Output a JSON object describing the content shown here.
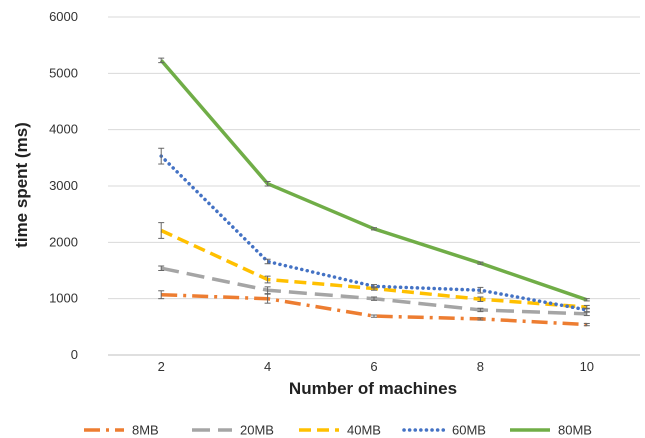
{
  "chart_data": {
    "type": "line",
    "title": "",
    "xlabel": "Number of machines",
    "ylabel": "time spent  (ms)",
    "x": [
      2,
      4,
      6,
      8,
      10
    ],
    "x_tick_labels": [
      "2",
      "4",
      "6",
      "8",
      "10"
    ],
    "ylim": [
      0,
      6000
    ],
    "y_ticks": [
      0,
      1000,
      2000,
      3000,
      4000,
      5000,
      6000
    ],
    "y_tick_labels": [
      "0",
      "1000",
      "2000",
      "3000",
      "4000",
      "5000",
      "6000"
    ],
    "grid": "horizontal",
    "legend_position": "bottom",
    "series": [
      {
        "name": "8MB",
        "color": "#ED7D31",
        "dash": "dash-dot",
        "values": [
          1070,
          1000,
          690,
          640,
          540
        ],
        "error": [
          70,
          80,
          20,
          20,
          20
        ]
      },
      {
        "name": "20MB",
        "color": "#A5A5A5",
        "dash": "long-dash",
        "values": [
          1540,
          1150,
          1000,
          800,
          730
        ],
        "error": [
          40,
          60,
          30,
          30,
          30
        ]
      },
      {
        "name": "40MB",
        "color": "#FFC000",
        "dash": "dash",
        "values": [
          2210,
          1340,
          1180,
          990,
          850
        ],
        "error": [
          140,
          60,
          30,
          40,
          30
        ]
      },
      {
        "name": "60MB",
        "color": "#4472C4",
        "dash": "dot",
        "values": [
          3530,
          1660,
          1220,
          1150,
          800
        ],
        "error": [
          140,
          40,
          30,
          50,
          30
        ]
      },
      {
        "name": "80MB",
        "color": "#70AD47",
        "dash": "solid",
        "values": [
          5230,
          3040,
          2240,
          1630,
          980
        ],
        "error": [
          40,
          40,
          20,
          20,
          20
        ]
      }
    ]
  }
}
